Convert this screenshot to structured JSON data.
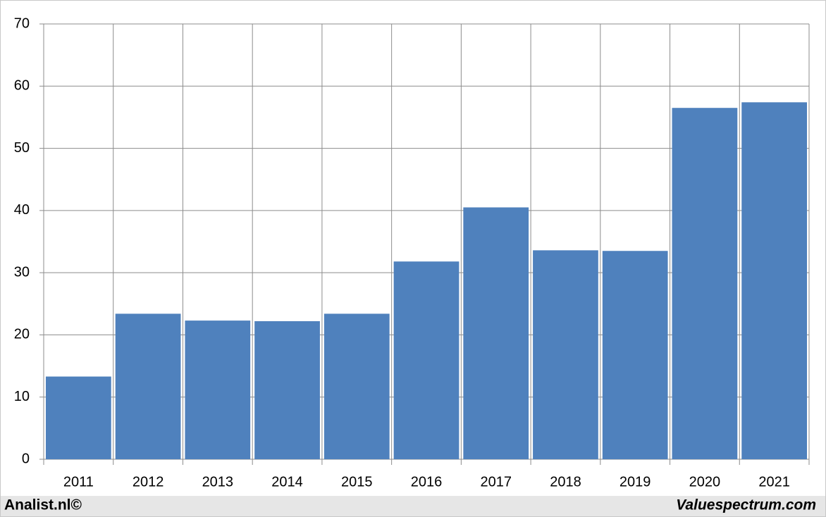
{
  "chart_data": {
    "type": "bar",
    "categories": [
      "2011",
      "2012",
      "2013",
      "2014",
      "2015",
      "2016",
      "2017",
      "2018",
      "2019",
      "2020",
      "2021"
    ],
    "values": [
      13.3,
      23.4,
      22.3,
      22.2,
      23.4,
      31.8,
      40.5,
      33.6,
      33.5,
      56.5,
      57.4
    ],
    "color": "#4f81bd",
    "ylim": [
      0,
      70
    ],
    "yticks": [
      0,
      10,
      20,
      30,
      40,
      50,
      60,
      70
    ],
    "grid": true,
    "annotations": [
      "Analist.nl©",
      "Valuespectrum.com"
    ]
  }
}
